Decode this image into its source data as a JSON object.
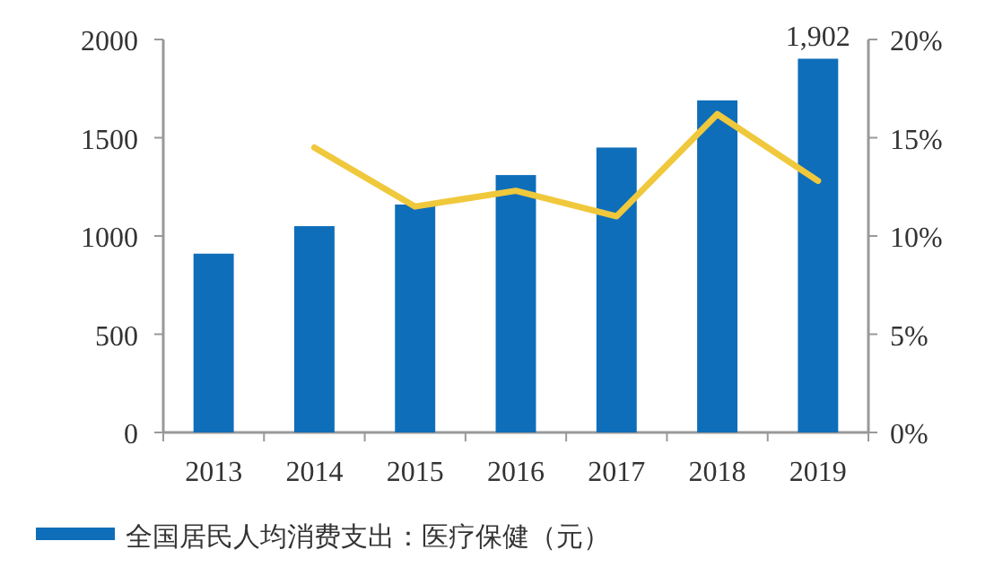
{
  "chart_data": {
    "type": "bar",
    "categories": [
      "2013",
      "2014",
      "2015",
      "2016",
      "2017",
      "2018",
      "2019"
    ],
    "series": [
      {
        "name": "全国居民人均消费支出：医疗保健（元）",
        "color": "#0f6eb9",
        "values": [
          910,
          1050,
          1160,
          1310,
          1450,
          1690,
          1902
        ],
        "value_labels": [
          null,
          null,
          null,
          null,
          null,
          null,
          "1,902"
        ]
      },
      {
        "type": "line",
        "axis": "y2",
        "color": "#f0c83c",
        "values": [
          null,
          14.5,
          11.5,
          12.3,
          11.0,
          16.2,
          12.8
        ]
      }
    ],
    "ylim": [
      0,
      2000
    ],
    "yticks": [
      0,
      500,
      1000,
      1500,
      2000
    ],
    "y2lim": [
      0,
      20
    ],
    "y2ticks": [
      {
        "value": 0,
        "label": "0%"
      },
      {
        "value": 5,
        "label": "5%"
      },
      {
        "value": 10,
        "label": "10%"
      },
      {
        "value": 15,
        "label": "15%"
      },
      {
        "value": 20,
        "label": "20%"
      }
    ],
    "grid": false,
    "legend": "bottom"
  }
}
